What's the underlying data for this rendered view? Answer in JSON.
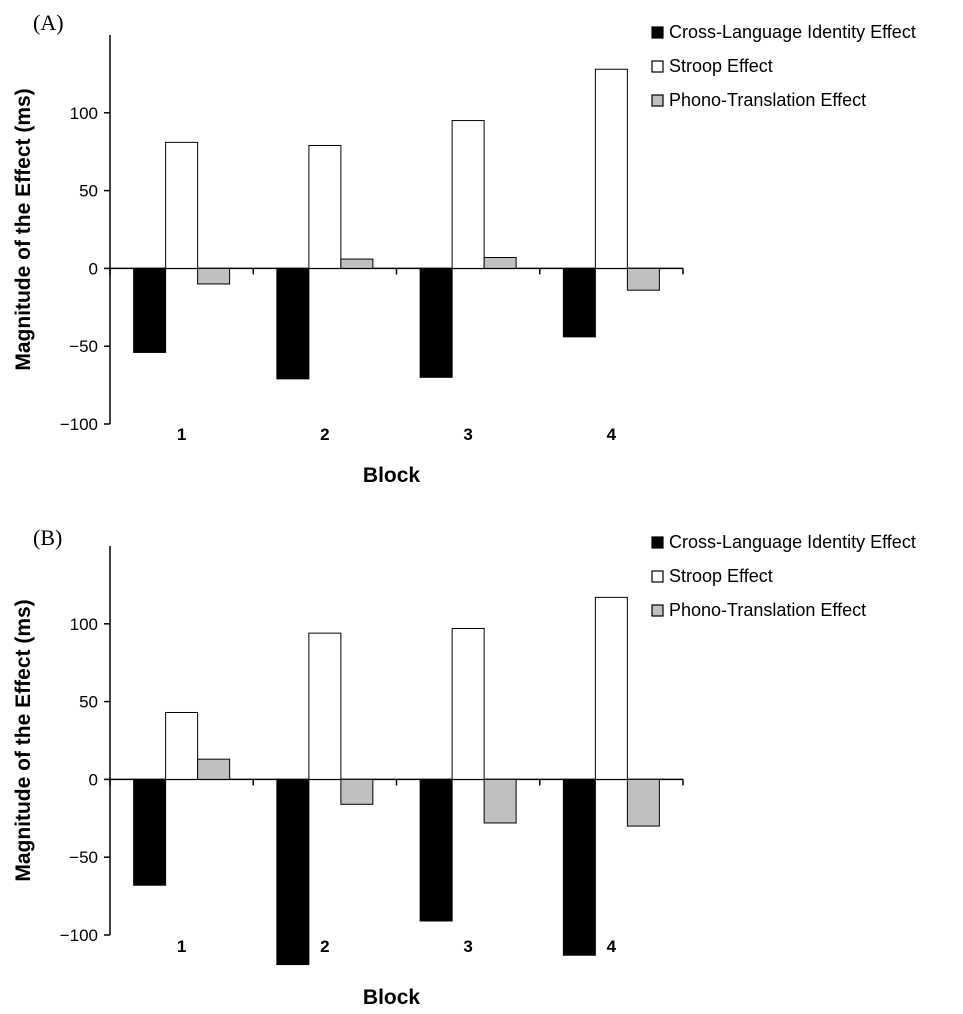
{
  "chart_data": [
    {
      "type": "bar",
      "panel_label": "(A)",
      "categories": [
        "1",
        "2",
        "3",
        "4"
      ],
      "xlabel": "Block",
      "ylabel": "Magnitude of the Effect (ms)",
      "ylim": [
        -100,
        150
      ],
      "yticks": [
        -100,
        -50,
        0,
        50,
        100
      ],
      "ytick_labels": [
        "−100",
        "−50",
        "0",
        "50",
        "100"
      ],
      "legend_position": "top-right",
      "series": [
        {
          "name": "Cross-Language Identity Effect",
          "color": "#000000",
          "values": [
            -54,
            -71,
            -70,
            -44
          ]
        },
        {
          "name": "Stroop Effect",
          "color": "#ffffff",
          "values": [
            81,
            79,
            95,
            128
          ]
        },
        {
          "name": "Phono-Translation Effect",
          "color": "#c0c0c0",
          "values": [
            -10,
            6,
            7,
            -14
          ]
        }
      ]
    },
    {
      "type": "bar",
      "panel_label": "(B)",
      "categories": [
        "1",
        "2",
        "3",
        "4"
      ],
      "xlabel": "Block",
      "ylabel": "Magnitude of the Effect (ms)",
      "ylim": [
        -100,
        150
      ],
      "yticks": [
        -100,
        -50,
        0,
        50,
        100
      ],
      "ytick_labels": [
        "−100",
        "−50",
        "0",
        "50",
        "100"
      ],
      "legend_position": "top-right",
      "series": [
        {
          "name": "Cross-Language Identity Effect",
          "color": "#000000",
          "values": [
            -68,
            -119,
            -91,
            -113
          ]
        },
        {
          "name": "Stroop Effect",
          "color": "#ffffff",
          "values": [
            43,
            94,
            97,
            117
          ]
        },
        {
          "name": "Phono-Translation Effect",
          "color": "#c0c0c0",
          "values": [
            13,
            -16,
            -28,
            -30
          ]
        }
      ]
    }
  ]
}
